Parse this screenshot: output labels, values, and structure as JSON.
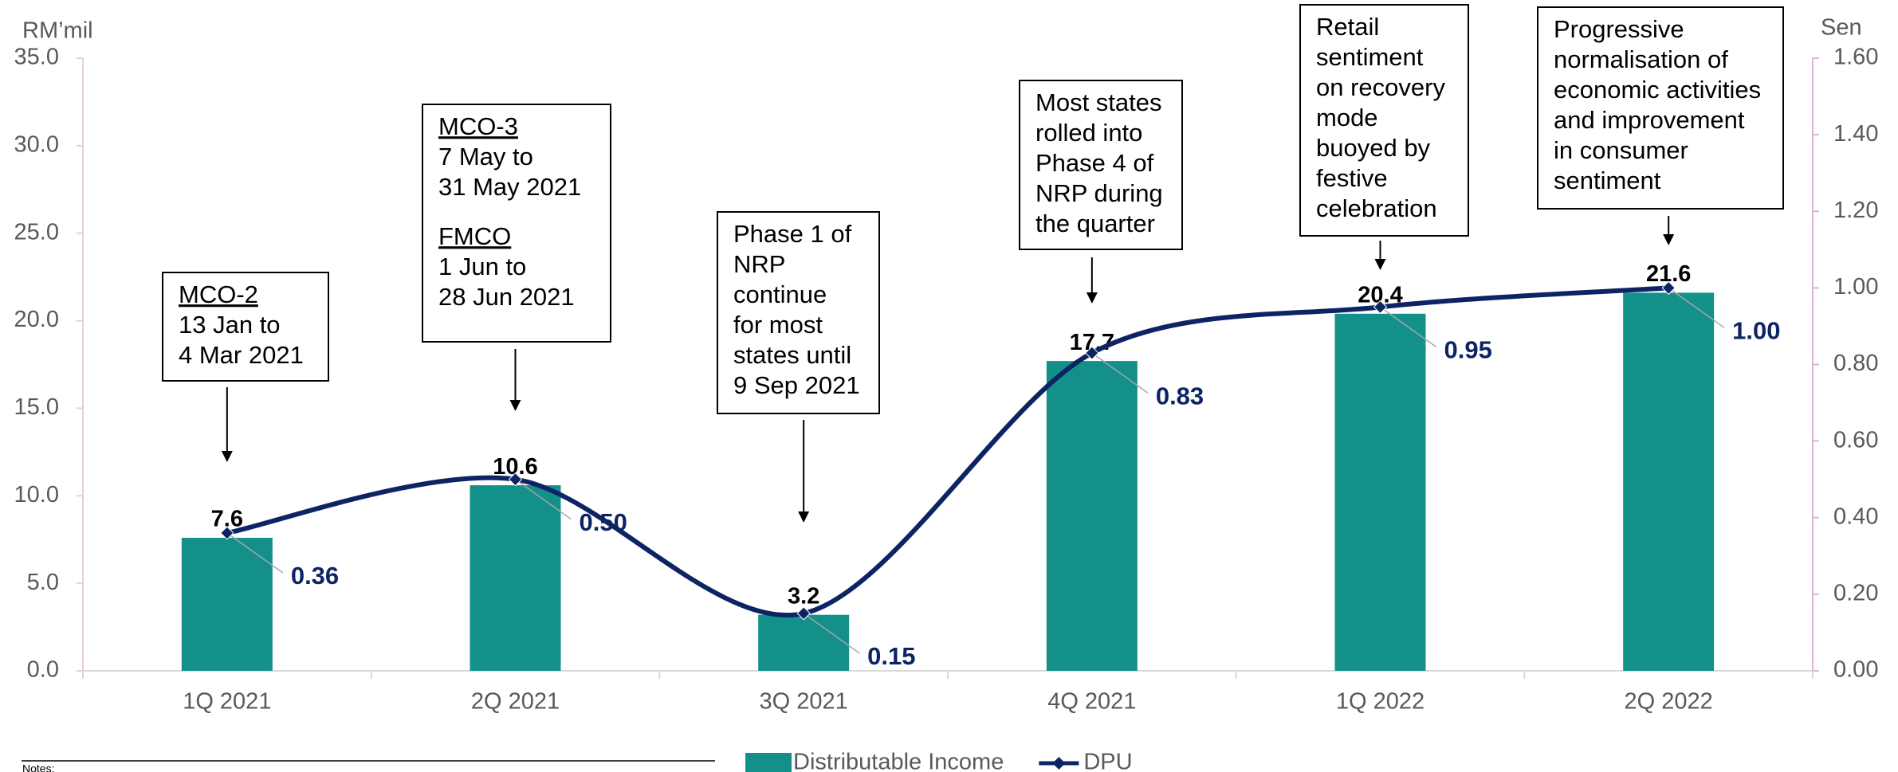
{
  "chart_data": {
    "type": "bar_line",
    "y_label": "RM’mil",
    "y2_label": "Sen",
    "categories": [
      "1Q 2021",
      "2Q 2021",
      "3Q 2021",
      "4Q 2021",
      "1Q 2022",
      "2Q 2022"
    ],
    "series": [
      {
        "name": "Distributable Income",
        "type": "bar",
        "color": "#14908a",
        "values": [
          7.6,
          10.6,
          3.2,
          17.7,
          20.4,
          21.6
        ]
      },
      {
        "name": "DPU",
        "type": "line",
        "axis": "y2",
        "color": "#0d2464",
        "values": [
          0.36,
          0.5,
          0.15,
          0.83,
          0.95,
          1.0
        ],
        "value_labels": [
          "0.36",
          "0.50",
          "0.15",
          "0.83",
          "0.95",
          "1.00"
        ]
      }
    ],
    "ylim": [
      0,
      35
    ],
    "yticks": [
      {
        "value": 0,
        "label": "0.0"
      },
      {
        "value": 5,
        "label": "5.0"
      },
      {
        "value": 10,
        "label": "10.0"
      },
      {
        "value": 15,
        "label": "15.0"
      },
      {
        "value": 20,
        "label": "20.0"
      },
      {
        "value": 25,
        "label": "25.0"
      },
      {
        "value": 30,
        "label": "30.0"
      },
      {
        "value": 35,
        "label": "35.0"
      }
    ],
    "y2lim": [
      0,
      1.6
    ],
    "y2ticks": [
      {
        "value": 0,
        "label": "0.00"
      },
      {
        "value": 0.2,
        "label": "0.20"
      },
      {
        "value": 0.4,
        "label": "0.40"
      },
      {
        "value": 0.6,
        "label": "0.60"
      },
      {
        "value": 0.8,
        "label": "0.80"
      },
      {
        "value": 1.0,
        "label": "1.00"
      },
      {
        "value": 1.2,
        "label": "1.20"
      },
      {
        "value": 1.4,
        "label": "1.40"
      },
      {
        "value": 1.6,
        "label": "1.60"
      }
    ],
    "annotations": [
      {
        "paragraphs": [
          {
            "heading": "MCO-2",
            "lines": [
              "13 Jan to",
              "4 Mar 2021"
            ]
          }
        ]
      },
      {
        "paragraphs": [
          {
            "heading": "MCO-3",
            "lines": [
              "7 May to",
              "31 May 2021"
            ]
          },
          {
            "heading": "FMCO",
            "lines": [
              "1 Jun to",
              "28 Jun 2021"
            ]
          }
        ]
      },
      {
        "paragraphs": [
          {
            "lines": [
              "Phase 1 of",
              "NRP",
              "continue",
              "for most",
              "states until",
              "9 Sep 2021"
            ]
          }
        ]
      },
      {
        "paragraphs": [
          {
            "lines": [
              "Most states",
              "rolled into",
              "Phase 4 of",
              "NRP during",
              "the quarter"
            ]
          }
        ]
      },
      {
        "paragraphs": [
          {
            "lines": [
              "Retail",
              "sentiment",
              "on recovery",
              "mode",
              "buoyed by",
              "festive",
              "celebration"
            ]
          }
        ]
      },
      {
        "paragraphs": [
          {
            "lines": [
              "Progressive",
              "normalisation of",
              "economic activities",
              "and improvement",
              "in consumer",
              "sentiment"
            ]
          }
        ]
      }
    ],
    "notes": "Notes:"
  }
}
